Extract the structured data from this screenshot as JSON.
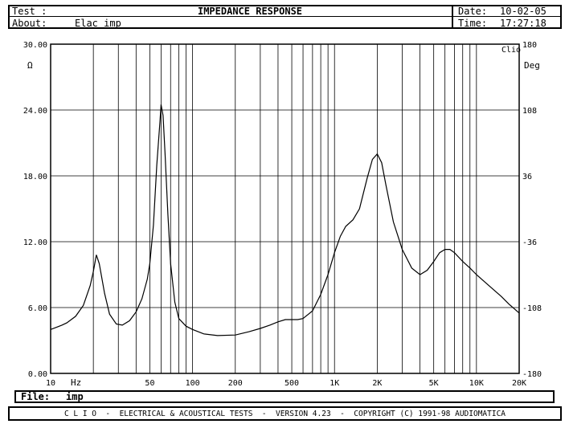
{
  "header": {
    "test_label": "Test :",
    "title": "IMPEDANCE RESPONSE",
    "date_label": "Date:",
    "date_value": "10-02-05",
    "about_label": "About:",
    "about_value": "Elac imp",
    "time_label": "Time:",
    "time_value": "17:27:18"
  },
  "footer": {
    "file_label": "File:",
    "file_value": "imp",
    "banner": "C L I O  -  ELECTRICAL & ACOUSTICAL TESTS  -  VERSION 4.23  -  COPYRIGHT (C) 1991-98 AUDIOMATICA"
  },
  "chart_data": {
    "type": "line",
    "title": "IMPEDANCE RESPONSE",
    "x_scale": "log",
    "xlim": [
      10,
      20000
    ],
    "ylim": [
      0,
      30
    ],
    "y2lim": [
      -180,
      180
    ],
    "ylabel": "Ω",
    "y2label": "Deg",
    "xunit": "Hz",
    "corner_label": "Clio",
    "grid": true,
    "y_ticks": [
      "0.00",
      "6.00",
      "12.00",
      "18.00",
      "24.00",
      "30.00"
    ],
    "y2_ticks": [
      "-180",
      "-108",
      "-36",
      "36",
      "108",
      "180"
    ],
    "x_tick_labels": [
      {
        "x": 10,
        "label": "10"
      },
      {
        "x": 50,
        "label": "50"
      },
      {
        "x": 100,
        "label": "100"
      },
      {
        "x": 200,
        "label": "200"
      },
      {
        "x": 500,
        "label": "500"
      },
      {
        "x": 1000,
        "label": "1K"
      },
      {
        "x": 2000,
        "label": "2K"
      },
      {
        "x": 5000,
        "label": "5K"
      },
      {
        "x": 10000,
        "label": "10K"
      },
      {
        "x": 20000,
        "label": "20K"
      }
    ],
    "series": [
      {
        "x": [
          10,
          11,
          12,
          13,
          15,
          17,
          19,
          20,
          21,
          22,
          24,
          26,
          29,
          32,
          36,
          40,
          44,
          48,
          50,
          53,
          56,
          59,
          60,
          62,
          64,
          67,
          70,
          75,
          80,
          90,
          100,
          120,
          150,
          200,
          250,
          300,
          350,
          400,
          450,
          500,
          550,
          600,
          700,
          800,
          900,
          1000,
          1100,
          1200,
          1350,
          1500,
          1700,
          1850,
          2000,
          2150,
          2300,
          2600,
          3000,
          3500,
          4000,
          4500,
          5000,
          5500,
          6000,
          6500,
          7000,
          8000,
          9000,
          10000,
          12000,
          15000,
          17000,
          20000
        ],
        "y": [
          4.0,
          4.2,
          4.4,
          4.6,
          5.2,
          6.2,
          8.0,
          9.3,
          10.8,
          10.0,
          7.3,
          5.4,
          4.5,
          4.4,
          4.8,
          5.6,
          6.8,
          8.6,
          10.0,
          13.5,
          19.0,
          23.0,
          24.5,
          23.5,
          20.0,
          14.5,
          10.0,
          6.5,
          5.0,
          4.3,
          4.0,
          3.6,
          3.45,
          3.5,
          3.8,
          4.1,
          4.4,
          4.7,
          4.9,
          4.9,
          4.9,
          5.0,
          5.7,
          7.2,
          9.0,
          11.0,
          12.5,
          13.4,
          14.0,
          15.0,
          17.8,
          19.5,
          20.0,
          19.2,
          17.2,
          13.8,
          11.3,
          9.6,
          9.0,
          9.4,
          10.2,
          11.0,
          11.3,
          11.3,
          11.0,
          10.2,
          9.6,
          9.0,
          8.1,
          7.0,
          6.3,
          5.5
        ]
      }
    ]
  }
}
